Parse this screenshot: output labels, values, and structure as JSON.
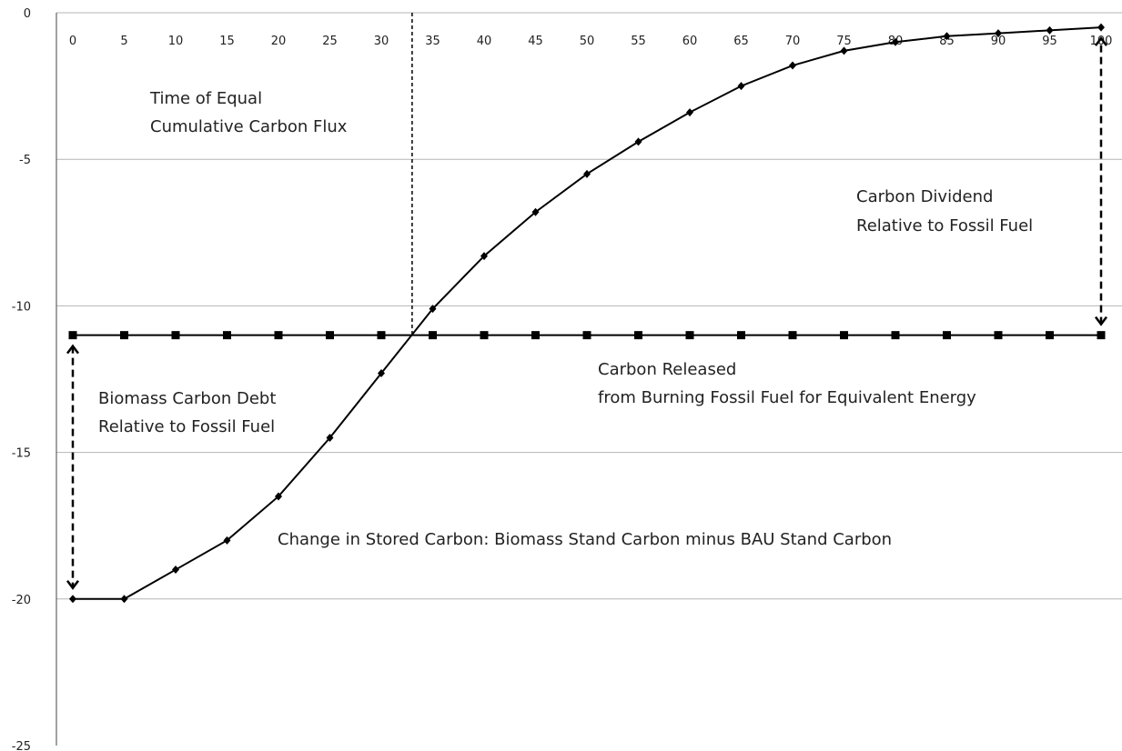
{
  "chart_data": {
    "type": "line",
    "x": [
      0,
      5,
      10,
      15,
      20,
      25,
      30,
      35,
      40,
      45,
      50,
      55,
      60,
      65,
      70,
      75,
      80,
      85,
      90,
      95,
      100
    ],
    "xlim": [
      0,
      100
    ],
    "ylim": [
      -25,
      0
    ],
    "x_ticks": [
      "0",
      "5",
      "10",
      "15",
      "20",
      "25",
      "30",
      "35",
      "40",
      "45",
      "50",
      "55",
      "60",
      "65",
      "70",
      "75",
      "80",
      "85",
      "90",
      "95",
      "100"
    ],
    "y_ticks": [
      "0",
      "-5",
      "-10",
      "-15",
      "-20",
      "-25"
    ],
    "grid": "horizontal",
    "series": [
      {
        "values": [
          -20,
          -20,
          -19,
          -18,
          -16.5,
          -14.5,
          -12.3,
          -10.1,
          -8.3,
          -6.8,
          -5.5,
          -4.4,
          -3.4,
          -2.5,
          -1.8,
          -1.3,
          -1.0,
          -0.8,
          -0.7,
          -0.6,
          -0.5
        ],
        "marker": "diamond",
        "color": "#000000"
      },
      {
        "values": [
          -11,
          -11,
          -11,
          -11,
          -11,
          -11,
          -11,
          -11,
          -11,
          -11,
          -11,
          -11,
          -11,
          -11,
          -11,
          -11,
          -11,
          -11,
          -11,
          -11,
          -11
        ],
        "marker": "square",
        "color": "#000000"
      }
    ],
    "vertical_marker_x": 33,
    "debt_arrow": {
      "x": 0,
      "from": -11,
      "to": -20
    },
    "dividend_arrow": {
      "x": 100,
      "from": -11,
      "to": -0.5
    },
    "annotations": {
      "equal_flux": [
        "Time of Equal",
        "Cumulative Carbon Flux"
      ],
      "dividend": [
        "Carbon Dividend",
        "Relative to Fossil Fuel"
      ],
      "released": [
        "Carbon Released",
        "from Burning  Fossil Fuel for Equivalent Energy"
      ],
      "debt": [
        "Biomass Carbon Debt",
        "Relative to Fossil Fuel"
      ],
      "stored": [
        "Change in Stored Carbon: Biomass Stand Carbon minus BAU Stand Carbon"
      ]
    }
  }
}
